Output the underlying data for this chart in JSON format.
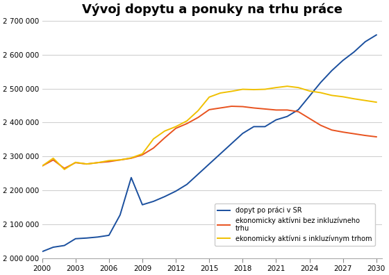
{
  "title": "Vývoj dopytu a ponuky na trhu práce",
  "title_fontsize": 13,
  "background_color": "#ffffff",
  "grid_color": "#d0d0d0",
  "xlim": [
    2000,
    2030.5
  ],
  "ylim": [
    2000000,
    2700000
  ],
  "yticks": [
    2000000,
    2100000,
    2200000,
    2300000,
    2400000,
    2500000,
    2600000,
    2700000
  ],
  "xticks": [
    2000,
    2003,
    2006,
    2009,
    2012,
    2015,
    2018,
    2021,
    2024,
    2027,
    2030
  ],
  "legend_labels": [
    "dopyt po práci v SR",
    "ekonomicky aktívni bez inkluzívneho\ntrhu",
    "ekonomicky aktívni s inkluzívnym trhom"
  ],
  "series": {
    "demand": {
      "color": "#1a4f9e",
      "years": [
        2000,
        2001,
        2002,
        2003,
        2004,
        2005,
        2006,
        2007,
        2008,
        2009,
        2010,
        2011,
        2012,
        2013,
        2014,
        2015,
        2016,
        2017,
        2018,
        2019,
        2020,
        2021,
        2022,
        2023,
        2024,
        2025,
        2026,
        2027,
        2028,
        2029,
        2030
      ],
      "values": [
        2020000,
        2033000,
        2038000,
        2058000,
        2060000,
        2063000,
        2068000,
        2128000,
        2238000,
        2158000,
        2168000,
        2182000,
        2198000,
        2218000,
        2248000,
        2278000,
        2308000,
        2338000,
        2368000,
        2388000,
        2388000,
        2408000,
        2418000,
        2438000,
        2478000,
        2518000,
        2553000,
        2583000,
        2608000,
        2638000,
        2658000
      ]
    },
    "without_inclusive": {
      "color": "#e8521e",
      "years": [
        2000,
        2001,
        2002,
        2003,
        2004,
        2005,
        2006,
        2007,
        2008,
        2009,
        2010,
        2011,
        2012,
        2013,
        2014,
        2015,
        2016,
        2017,
        2018,
        2019,
        2020,
        2021,
        2022,
        2023,
        2024,
        2025,
        2026,
        2027,
        2028,
        2029,
        2030
      ],
      "values": [
        2272000,
        2290000,
        2265000,
        2282000,
        2278000,
        2282000,
        2285000,
        2290000,
        2295000,
        2305000,
        2325000,
        2355000,
        2383000,
        2397000,
        2415000,
        2438000,
        2443000,
        2448000,
        2447000,
        2443000,
        2440000,
        2437000,
        2437000,
        2432000,
        2412000,
        2392000,
        2378000,
        2372000,
        2367000,
        2362000,
        2358000
      ]
    },
    "with_inclusive": {
      "color": "#f0c000",
      "years": [
        2000,
        2001,
        2002,
        2003,
        2004,
        2005,
        2006,
        2007,
        2008,
        2009,
        2010,
        2011,
        2012,
        2013,
        2014,
        2015,
        2016,
        2017,
        2018,
        2019,
        2020,
        2021,
        2022,
        2023,
        2024,
        2025,
        2026,
        2027,
        2028,
        2029,
        2030
      ],
      "values": [
        2272000,
        2295000,
        2262000,
        2283000,
        2278000,
        2282000,
        2288000,
        2290000,
        2296000,
        2308000,
        2352000,
        2375000,
        2388000,
        2405000,
        2435000,
        2475000,
        2487000,
        2492000,
        2498000,
        2497000,
        2498000,
        2503000,
        2507000,
        2503000,
        2493000,
        2488000,
        2480000,
        2476000,
        2470000,
        2465000,
        2460000
      ]
    }
  }
}
